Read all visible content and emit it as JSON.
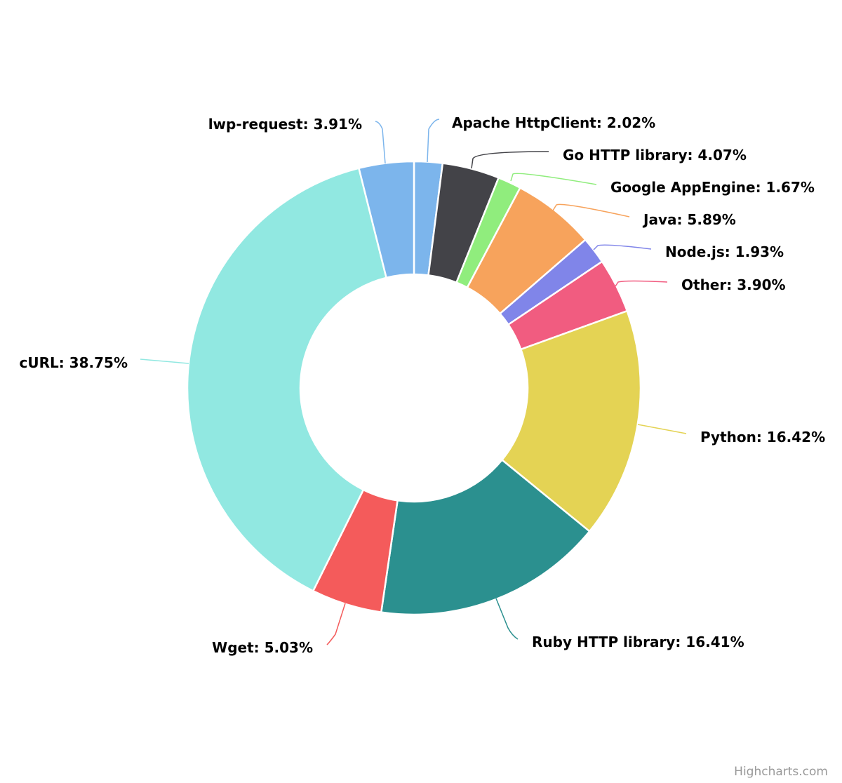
{
  "chart_data": {
    "type": "pie",
    "variant": "donut",
    "title": "",
    "slices": [
      {
        "name": "Apache HttpClient",
        "value": 2.02,
        "label": "Apache HttpClient: 2.02%",
        "color": "#7cb5ec"
      },
      {
        "name": "Go HTTP library",
        "value": 4.07,
        "label": "Go HTTP library: 4.07%",
        "color": "#434348"
      },
      {
        "name": "Google AppEngine",
        "value": 1.67,
        "label": "Google AppEngine: 1.67%",
        "color": "#90ed7d"
      },
      {
        "name": "Java",
        "value": 5.89,
        "label": "Java: 5.89%",
        "color": "#f7a35c"
      },
      {
        "name": "Node.js",
        "value": 1.93,
        "label": "Node.js: 1.93%",
        "color": "#8085e9"
      },
      {
        "name": "Other",
        "value": 3.9,
        "label": "Other: 3.90%",
        "color": "#f15c80"
      },
      {
        "name": "Python",
        "value": 16.42,
        "label": "Python: 16.42%",
        "color": "#e4d354"
      },
      {
        "name": "Ruby HTTP library",
        "value": 16.41,
        "label": "Ruby HTTP library: 16.41%",
        "color": "#2b908f"
      },
      {
        "name": "Wget",
        "value": 5.03,
        "label": "Wget: 5.03%",
        "color": "#f45b5b"
      },
      {
        "name": "cURL",
        "value": 38.75,
        "label": "cURL: 38.75%",
        "color": "#91e8e1"
      },
      {
        "name": "lwp-request",
        "value": 3.91,
        "label": "lwp-request: 3.91%",
        "color": "#7cb5ec"
      }
    ]
  },
  "credits": {
    "text": "Highcharts.com"
  }
}
